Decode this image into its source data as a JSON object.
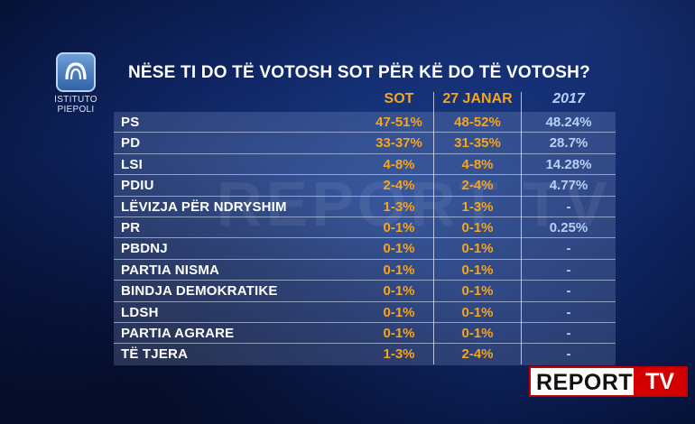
{
  "logo": {
    "line1": "ISTITUTO",
    "line2": "PIEPOLI"
  },
  "title": "NËSE TI DO TË VOTOSH SOT PËR KË DO TË VOTOSH?",
  "headers": {
    "sot": "SOT",
    "january": "27 JANAR",
    "y2017": "2017"
  },
  "rows": [
    {
      "party": "PS",
      "sot": "47-51%",
      "january": "48-52%",
      "y2017": "48.24%"
    },
    {
      "party": "PD",
      "sot": "33-37%",
      "january": "31-35%",
      "y2017": "28.7%"
    },
    {
      "party": "LSI",
      "sot": "4-8%",
      "january": "4-8%",
      "y2017": "14.28%"
    },
    {
      "party": "PDIU",
      "sot": "2-4%",
      "january": "2-4%",
      "y2017": "4.77%"
    },
    {
      "party": "LËVIZJA PËR NDRYSHIM",
      "sot": "1-3%",
      "january": "1-3%",
      "y2017": "-"
    },
    {
      "party": "PR",
      "sot": "0-1%",
      "january": "0-1%",
      "y2017": "0.25%"
    },
    {
      "party": "PBDNJ",
      "sot": "0-1%",
      "january": "0-1%",
      "y2017": "-"
    },
    {
      "party": "PARTIA NISMA",
      "sot": "0-1%",
      "january": "0-1%",
      "y2017": "-"
    },
    {
      "party": "BINDJA DEMOKRATIKE",
      "sot": "0-1%",
      "january": "0-1%",
      "y2017": "-"
    },
    {
      "party": "LDSH",
      "sot": "0-1%",
      "january": "0-1%",
      "y2017": "-"
    },
    {
      "party": "PARTIA AGRARE",
      "sot": "0-1%",
      "january": "0-1%",
      "y2017": "-"
    },
    {
      "party": "TË TJERA",
      "sot": "1-3%",
      "january": "2-4%",
      "y2017": "-"
    }
  ],
  "watermark": "REPORT TV",
  "brand": {
    "report": "REPORT",
    "tv": "TV"
  },
  "colors": {
    "accent": "#f7a51d",
    "y2017": "#b9d0f5",
    "brand_red": "#d40000"
  }
}
